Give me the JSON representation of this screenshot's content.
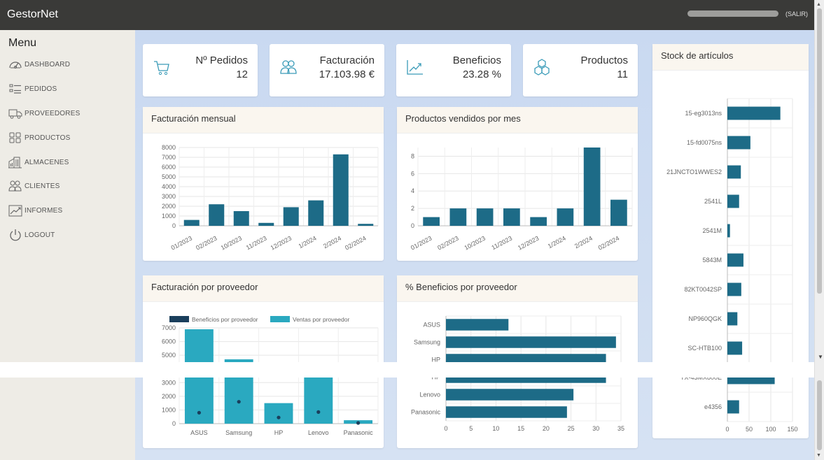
{
  "app": {
    "brand": "GestorNet",
    "logout_label": "(SALIR)"
  },
  "sidebar": {
    "title": "Menu",
    "items": [
      {
        "label": "DASHBOARD",
        "icon": "gauge-icon"
      },
      {
        "label": "PEDIDOS",
        "icon": "list-icon"
      },
      {
        "label": "PROVEEDORES",
        "icon": "truck-icon"
      },
      {
        "label": "PRODUCTOS",
        "icon": "grid-icon"
      },
      {
        "label": "ALMACENES",
        "icon": "warehouse-icon"
      },
      {
        "label": "CLIENTES",
        "icon": "users-icon"
      },
      {
        "label": "INFORMES",
        "icon": "chart-line-icon"
      },
      {
        "label": "LOGOUT",
        "icon": "power-icon"
      }
    ]
  },
  "stats": [
    {
      "title": "Nº Pedidos",
      "value": "12",
      "icon": "cart-icon"
    },
    {
      "title": "Facturación",
      "value": "17.103.98 €",
      "icon": "users-icon"
    },
    {
      "title": "Beneficios",
      "value": "23.28 %",
      "icon": "trend-icon"
    },
    {
      "title": "Productos",
      "value": "11",
      "icon": "cubes-icon"
    }
  ],
  "colors": {
    "primary": "#1d6b87",
    "secondary": "#2aa9c0",
    "dark": "#1a3f5c"
  },
  "chart_data": [
    {
      "id": "facturacion-mensual",
      "title": "Facturación mensual",
      "type": "bar",
      "categories": [
        "01/2023",
        "02/2023",
        "10/2023",
        "11/2023",
        "12/2023",
        "1/2024",
        "2/2024",
        "02/2024"
      ],
      "values": [
        600,
        2200,
        1500,
        300,
        1900,
        2600,
        7300,
        200
      ],
      "ylim": [
        0,
        8000
      ],
      "yticks": [
        0,
        1000,
        2000,
        3000,
        4000,
        5000,
        6000,
        7000,
        8000
      ]
    },
    {
      "id": "productos-vendidos",
      "title": "Productos vendidos por mes",
      "type": "bar",
      "categories": [
        "01/2023",
        "02/2023",
        "10/2023",
        "11/2023",
        "12/2023",
        "1/2024",
        "2/2024",
        "02/2024"
      ],
      "values": [
        1,
        2,
        2,
        2,
        1,
        2,
        9,
        3
      ],
      "ylim": [
        0,
        9
      ],
      "yticks": [
        0,
        2,
        4,
        6,
        8
      ]
    },
    {
      "id": "facturacion-proveedor",
      "title": "Facturación por proveedor",
      "type": "bar",
      "categories": [
        "ASUS",
        "Samsung",
        "HP",
        "Lenovo",
        "Panasonic"
      ],
      "series": [
        {
          "name": "Beneficios por proveedor",
          "values": [
            800,
            1600,
            450,
            850,
            50
          ]
        },
        {
          "name": "Ventas por proveedor",
          "values": [
            6900,
            4700,
            1500,
            3600,
            250
          ]
        }
      ],
      "ylim": [
        0,
        7000
      ],
      "yticks": [
        0,
        1000,
        2000,
        3000,
        4000,
        5000,
        6000,
        7000
      ]
    },
    {
      "id": "beneficios-proveedor",
      "title": "% Beneficios por proveedor",
      "type": "bar",
      "orientation": "horizontal",
      "categories": [
        "ASUS",
        "Samsung",
        "HP",
        "HP",
        "Lenovo",
        "Panasonic"
      ],
      "values": [
        12.5,
        34,
        32,
        32,
        25.5,
        24.2
      ],
      "xlim": [
        0,
        35
      ],
      "xticks": [
        0,
        5,
        10,
        15,
        20,
        25,
        30,
        35
      ]
    },
    {
      "id": "stock-articulos",
      "title": "Stock de artículos",
      "type": "bar",
      "orientation": "horizontal",
      "categories": [
        "15-eg3013ns",
        "15-fd0075ns",
        "21JNCTO1WWES2",
        "2541L",
        "2541M",
        "5843M",
        "82KT0042SP",
        "NP960QGK",
        "SC-HTB100",
        "TX-43MX800E",
        "e4356"
      ],
      "values": [
        122,
        53,
        31,
        27,
        6,
        37,
        32,
        23,
        34,
        109,
        27
      ],
      "xlim": [
        0,
        150
      ],
      "xticks": [
        0,
        50,
        100,
        150
      ]
    }
  ]
}
